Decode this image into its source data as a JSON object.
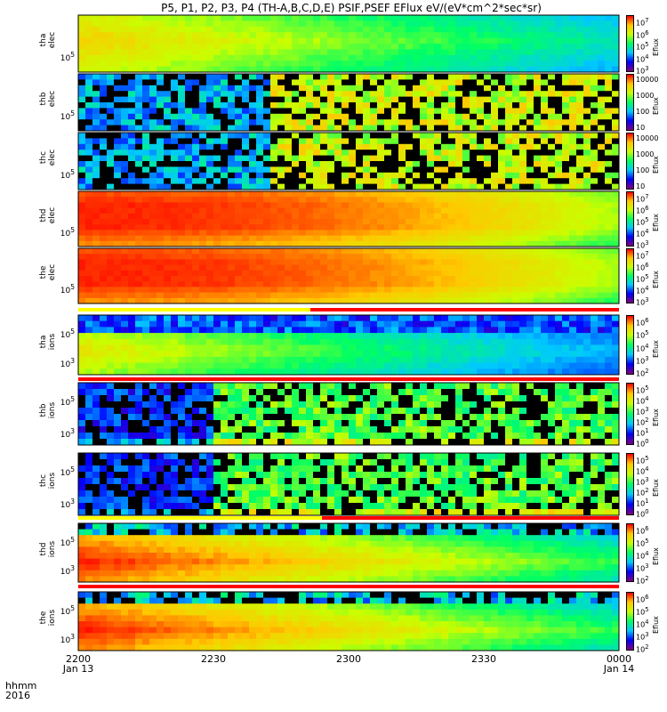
{
  "title": "P5, P1, P2, P3, P4 (TH-A,B,C,D,E) PSIF,PSEF EFlux eV/(eV*cm^2*sec*sr)",
  "xaxis": {
    "label_top": "hhmm",
    "label_bottom": "2016",
    "ticks": [
      {
        "time": "2200",
        "date": "Jan 13"
      },
      {
        "time": "2230",
        "date": ""
      },
      {
        "time": "2300",
        "date": ""
      },
      {
        "time": "2330",
        "date": ""
      },
      {
        "time": "0000",
        "date": "Jan 14"
      }
    ]
  },
  "colorbar_label": "Eflux",
  "chart_data": {
    "type": "heatmap",
    "x_range": [
      "2016-01-13 22:00",
      "2016-01-14 00:00"
    ],
    "panels": [
      {
        "probe": "tha",
        "species": "elec",
        "ytick": "10^5",
        "cbar_ticks": [
          "10^7",
          "10^6",
          "10^5",
          "10^4",
          "10^3"
        ],
        "profile": "high_decay",
        "noisy_until": 0.0
      },
      {
        "probe": "thb",
        "species": "elec",
        "ytick": "10^5",
        "cbar_ticks": [
          "10000",
          "1000",
          "100",
          "10"
        ],
        "profile": "noise",
        "noisy_until": 0.0
      },
      {
        "probe": "thc",
        "species": "elec",
        "ytick": "10^5",
        "cbar_ticks": [
          "10000",
          "1000",
          "100",
          "10"
        ],
        "profile": "noise",
        "noisy_until": 0.0
      },
      {
        "probe": "thd",
        "species": "elec",
        "ytick": "10^5",
        "cbar_ticks": [
          "10^7",
          "10^6",
          "10^5",
          "10^4",
          "10^3"
        ],
        "profile": "hot",
        "noisy_until": 0.0
      },
      {
        "probe": "the",
        "species": "elec",
        "ytick": "10^5",
        "cbar_ticks": [
          "10^7",
          "10^6",
          "10^5",
          "10^4",
          "10^3"
        ],
        "profile": "hot",
        "noisy_until": 0.0
      },
      {
        "probe": "tha",
        "species": "ions",
        "ytick": "10^5",
        "ytick2": "10^3",
        "cbar_ticks": [
          "10^6",
          "10^5",
          "10^4",
          "10^3",
          "10^2"
        ],
        "profile": "ions",
        "noisy_until": 0.0
      },
      {
        "probe": "thb",
        "species": "ions",
        "ytick": "10^5",
        "ytick2": "10^3",
        "cbar_ticks": [
          "10^5",
          "10^4",
          "10^3",
          "10^2",
          "10^1",
          "10^0"
        ],
        "profile": "ionnoise",
        "noisy_until": 0.0
      },
      {
        "probe": "thc",
        "species": "ions",
        "ytick": "10^5",
        "ytick2": "10^3",
        "cbar_ticks": [
          "10^5",
          "10^4",
          "10^3",
          "10^2",
          "10^1",
          "10^0"
        ],
        "profile": "ionnoise",
        "noisy_until": 0.0
      },
      {
        "probe": "thd",
        "species": "ions",
        "ytick": "10^5",
        "ytick2": "10^3",
        "cbar_ticks": [
          "10^6",
          "10^5",
          "10^4",
          "10^3",
          "10^2"
        ],
        "profile": "ions_hot",
        "noisy_until": 0.0
      },
      {
        "probe": "the",
        "species": "ions",
        "ytick": "10^5",
        "ytick2": "10^3",
        "cbar_ticks": [
          "10^6",
          "10^5",
          "10^4",
          "10^3",
          "10^2"
        ],
        "profile": "ions_hot",
        "noisy_until": 0.0
      }
    ],
    "mode_flags": [
      {
        "segments": [
          {
            "from": 0.0,
            "to": 0.43,
            "color": "#ffff00"
          },
          {
            "from": 0.43,
            "to": 1.0,
            "color": "#ff0000"
          }
        ]
      },
      {
        "segments": [
          {
            "from": 0.0,
            "to": 1.0,
            "color": "#ff0000"
          }
        ]
      },
      {
        "segments": [
          {
            "from": 0.0,
            "to": 0.45,
            "color": "#ffff00"
          },
          {
            "from": 0.45,
            "to": 1.0,
            "color": "#ff0000"
          }
        ]
      },
      {
        "segments": [
          {
            "from": 0.0,
            "to": 1.0,
            "color": "#ff0000"
          }
        ]
      }
    ]
  }
}
